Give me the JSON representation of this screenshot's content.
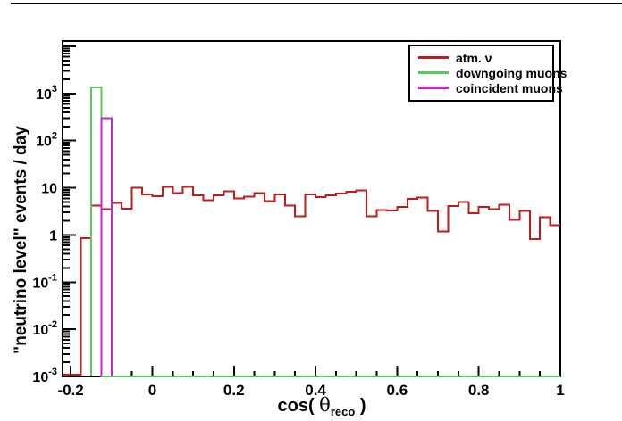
{
  "axes": {
    "x": {
      "min": -0.22,
      "max": 1.0,
      "minor_step": 0.05,
      "major_ticks": [
        {
          "v": -0.2,
          "label": "-0.2"
        },
        {
          "v": 0,
          "label": "0"
        },
        {
          "v": 0.2,
          "label": "0.2"
        },
        {
          "v": 0.4,
          "label": "0.4"
        },
        {
          "v": 0.6,
          "label": "0.6"
        },
        {
          "v": 0.8,
          "label": "0.8"
        },
        {
          "v": 1.0,
          "label": "1"
        }
      ],
      "title": {
        "prefix": "cos( ",
        "symbol": "θ",
        "subscript": "reco",
        "suffix": " )"
      }
    },
    "y": {
      "scale": "log",
      "min": 0.001,
      "max": 13000,
      "title": "\"neutrino level\" events / day",
      "tick_labels": [
        {
          "v": 1000,
          "base": "10",
          "sup": "3"
        },
        {
          "v": 100,
          "base": "10",
          "sup": "2"
        },
        {
          "v": 10,
          "base": "10",
          "sup": ""
        },
        {
          "v": 1,
          "base": "1",
          "sup": ""
        },
        {
          "v": 0.1,
          "base": "10",
          "sup": "-1"
        },
        {
          "v": 0.01,
          "base": "10",
          "sup": "-2"
        },
        {
          "v": 0.001,
          "base": "10",
          "sup": "-3"
        }
      ]
    }
  },
  "legend": {
    "entries": [
      {
        "label": "atm. ν",
        "color": "#c41a1a"
      },
      {
        "label": "downgoing muons",
        "color": "#5dc85d"
      },
      {
        "label": "coincident muons",
        "color": "#cc22cc"
      }
    ]
  },
  "chart_data": {
    "type": "step-histogram",
    "xlabel": "cos( θ_reco )",
    "ylabel": "\"neutrino level\" events / day",
    "x_range": [
      -0.22,
      1.0
    ],
    "y_range_log": [
      0.001,
      13000
    ],
    "grid": false,
    "legend_position": "top-right",
    "series": [
      {
        "name": "atm. ν",
        "color": "#c41a1a",
        "bin_start": -0.175,
        "bin_width": 0.025,
        "baseline_from": -0.22,
        "values": [
          0.86,
          4.2,
          3.5,
          4.8,
          3.6,
          10,
          7.2,
          6.6,
          10.5,
          7.8,
          10.5,
          6.9,
          5.5,
          7.0,
          8.5,
          6.0,
          6.5,
          7.8,
          5.2,
          7.2,
          4.2,
          2.5,
          7.3,
          6.3,
          7.0,
          7.6,
          8.3,
          8.8,
          2.5,
          3.4,
          3.3,
          3.9,
          5.8,
          6.2,
          3.2,
          1.2,
          4.1,
          5.0,
          2.9,
          3.9,
          3.5,
          4.4,
          2.1,
          3.2,
          0.82,
          2.4,
          1.6
        ]
      },
      {
        "name": "downgoing muons",
        "color": "#5dc85d",
        "bin_start": -0.15,
        "bin_width": 0.025,
        "baseline_to": 1.0,
        "values": [
          1350
        ]
      },
      {
        "name": "coincident muons",
        "color": "#cc22cc",
        "bin_start": -0.125,
        "bin_width": 0.025,
        "values": [
          300
        ]
      }
    ]
  }
}
